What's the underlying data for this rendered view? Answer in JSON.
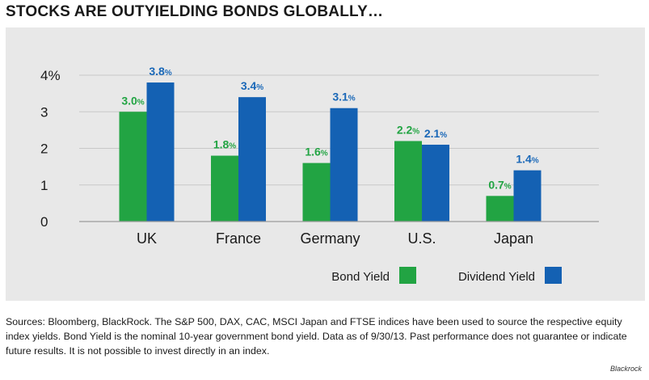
{
  "title": "STOCKS ARE OUTYIELDING BONDS GLOBALLY…",
  "chart_data": {
    "type": "bar",
    "categories": [
      "UK",
      "France",
      "Germany",
      "U.S.",
      "Japan"
    ],
    "series": [
      {
        "name": "Bond Yield",
        "values": [
          3.0,
          1.8,
          1.6,
          2.2,
          0.7
        ],
        "color": "#22a443",
        "label_color": "#22a443"
      },
      {
        "name": "Dividend Yield",
        "values": [
          3.8,
          3.4,
          3.1,
          2.1,
          1.4
        ],
        "color": "#1461b3",
        "label_color": "#1a68b8"
      }
    ],
    "ylim": [
      0,
      4
    ],
    "yticks": [
      {
        "value": 4,
        "label": "4%"
      },
      {
        "value": 3,
        "label": "3"
      },
      {
        "value": 2,
        "label": "2"
      },
      {
        "value": 1,
        "label": "1"
      },
      {
        "value": 0,
        "label": "0"
      }
    ],
    "value_suffix": "%",
    "grid": true,
    "legend_position": "bottom-right"
  },
  "source_note": "Sources: Bloomberg, BlackRock. The S&P 500, DAX, CAC, MSCI Japan and FTSE indices have been used to source the respective equity index yields. Bond Yield is the nominal 10-year government bond yield. Data as of 9/30/13. Past performance does not guarantee or indicate future results. It is not possible to invest directly in an index.",
  "credit": "Blackrock",
  "colors": {
    "panel": "#e8e8e8",
    "grid": "#c8c8c8",
    "axis": "#9a9a9a"
  }
}
